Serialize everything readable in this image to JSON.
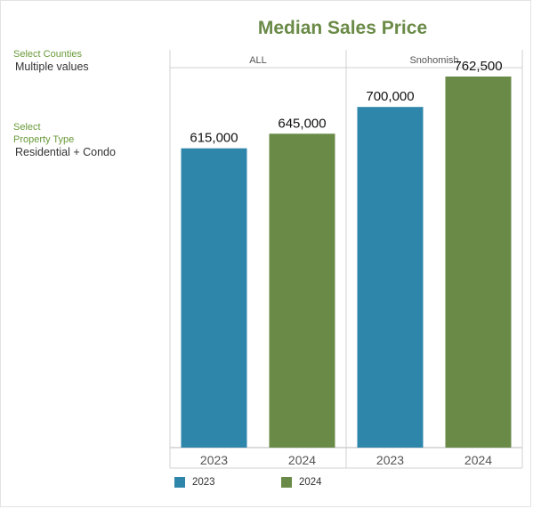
{
  "filters": {
    "counties_label": "Select Counties",
    "counties_value": "Multiple values",
    "property_label_line1": "Select",
    "property_label_line2": "Property Type",
    "property_value": "Residential + Condo"
  },
  "colors": {
    "series_2023": "#2e86ab",
    "series_2024": "#6a8a47",
    "title": "#6a8a47"
  },
  "chart_data": {
    "type": "bar",
    "title": "Median Sales Price",
    "panels": [
      "ALL",
      "Snohomish"
    ],
    "categories": [
      "2023",
      "2024"
    ],
    "series": [
      {
        "name": "2023",
        "values": [
          615000,
          700000
        ],
        "labels": [
          "615,000",
          "700,000"
        ]
      },
      {
        "name": "2024",
        "values": [
          645000,
          762500
        ],
        "labels": [
          "645,000",
          "762,500"
        ]
      }
    ],
    "ylim": [
      0,
      800000
    ],
    "xlabel": "",
    "ylabel": "",
    "legend_position": "bottom-left",
    "grid": false
  }
}
